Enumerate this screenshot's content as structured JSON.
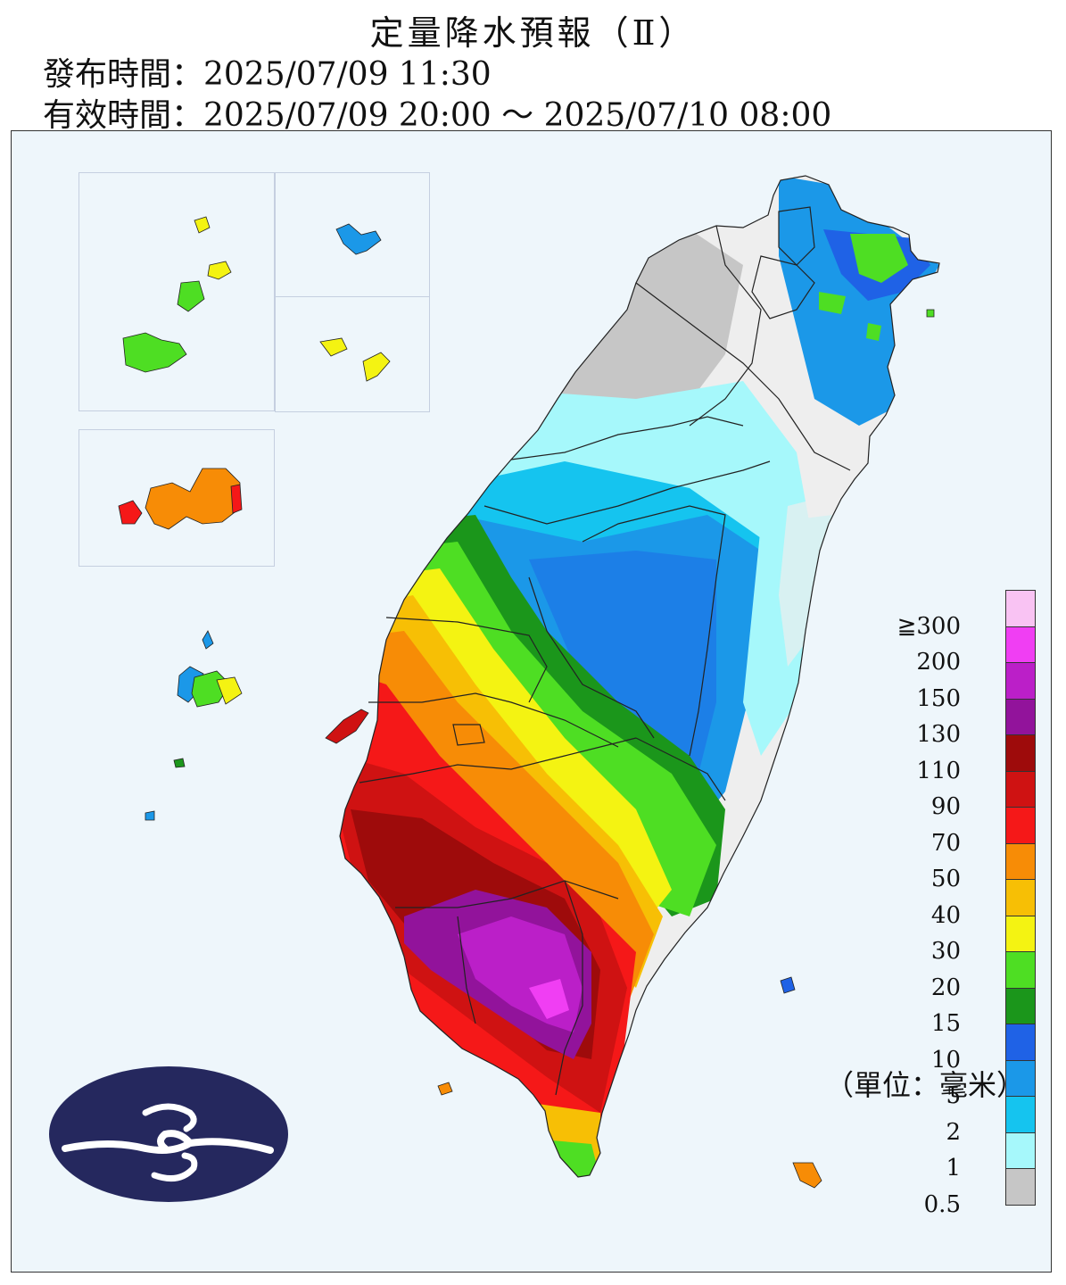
{
  "header": {
    "title": "定量降水預報（Ⅱ）",
    "issued": "發布時間：2025/07/09 11:30",
    "valid": "有效時間：2025/07/09 20:00 ～ 2025/07/10 08:00"
  },
  "legend": {
    "unit": "（單位：毫米）",
    "labels": [
      "≧300",
      "200",
      "150",
      "130",
      "110",
      "90",
      "70",
      "50",
      "40",
      "30",
      "20",
      "15",
      "10",
      "5",
      "2",
      "1",
      "0.5"
    ],
    "colors": [
      "#f9c3f3",
      "#f03ef3",
      "#bb1fc8",
      "#92139b",
      "#9e0b0b",
      "#cf1212",
      "#f51818",
      "#f78c06",
      "#f7bf05",
      "#f4f312",
      "#4ede23",
      "#1b961b",
      "#1f62e6",
      "#1b98e8",
      "#15c4ef",
      "#a6f8fb",
      "#c6c6c6"
    ]
  },
  "colors": {
    "background": "#eef6fb",
    "logo": "#25285e"
  },
  "icons": {
    "logo": "cwa-cloud-logo"
  }
}
